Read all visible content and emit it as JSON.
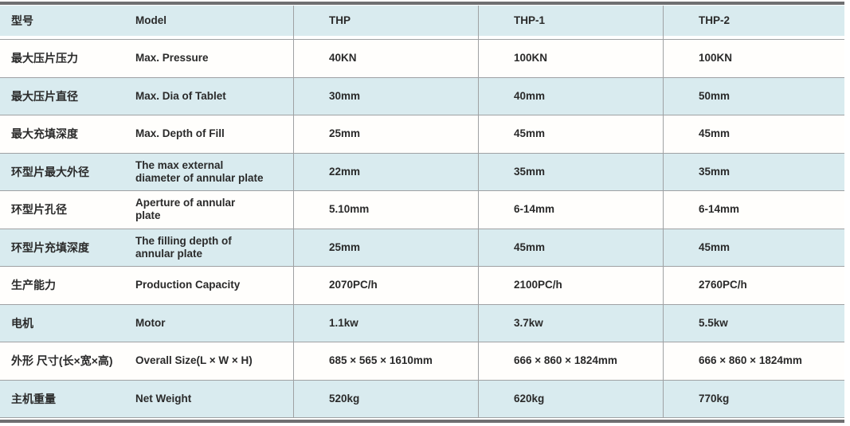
{
  "table": {
    "header": {
      "cn": "型号",
      "en": "Model",
      "thp": "THP",
      "thp1": "THP-1",
      "thp2": "THP-2"
    },
    "rows": [
      {
        "cn": "最大压片压力",
        "en": "Max. Pressure",
        "thp": "40KN",
        "thp1": "100KN",
        "thp2": "100KN"
      },
      {
        "cn": "最大压片直径",
        "en": "Max. Dia of Tablet",
        "thp": "30mm",
        "thp1": "40mm",
        "thp2": "50mm"
      },
      {
        "cn": "最大充填深度",
        "en": "Max. Depth of Fill",
        "thp": "25mm",
        "thp1": "45mm",
        "thp2": "45mm"
      },
      {
        "cn": "环型片最大外径",
        "en": "The max external\ndiameter of annular plate",
        "thp": "22mm",
        "thp1": "35mm",
        "thp2": "35mm"
      },
      {
        "cn": "环型片孔径",
        "en": "Aperture of annular\nplate",
        "thp": "5.10mm",
        "thp1": "6-14mm",
        "thp2": "6-14mm"
      },
      {
        "cn": "环型片充填深度",
        "en": "The filling depth of\nannular plate",
        "thp": "25mm",
        "thp1": "45mm",
        "thp2": "45mm"
      },
      {
        "cn": "生产能力",
        "en": "Production Capacity",
        "thp": "2070PC/h",
        "thp1": "2100PC/h",
        "thp2": "2760PC/h"
      },
      {
        "cn": "电机",
        "en": "Motor",
        "thp": "1.1kw",
        "thp1": "3.7kw",
        "thp2": "5.5kw"
      },
      {
        "cn": "外形 尺寸(长×宽×高)",
        "en": "Overall Size(L × W × H)",
        "thp": "685 × 565 × 1610mm",
        "thp1": "666 × 860 × 1824mm",
        "thp2": "666 × 860 × 1824mm"
      },
      {
        "cn": "主机重量",
        "en": "Net Weight",
        "thp": "520kg",
        "thp1": "620kg",
        "thp2": "770kg"
      }
    ]
  },
  "colors": {
    "row_highlight": "#d9ebef",
    "grid_line": "#9fa1a3",
    "frame_bar": "#6e6f71",
    "text": "#2a2a2a"
  }
}
